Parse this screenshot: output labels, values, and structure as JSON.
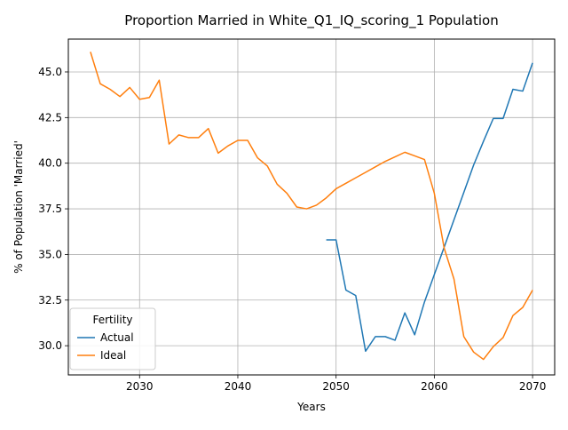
{
  "chart_data": {
    "type": "line",
    "title": "Proportion Married in White_Q1_IQ_scoring_1 Population",
    "xlabel": "Years",
    "ylabel": "% of Population 'Married'",
    "xlim": [
      2022.75,
      2072.25
    ],
    "ylim": [
      28.4,
      46.8
    ],
    "xticks": [
      2030,
      2040,
      2050,
      2060,
      2070
    ],
    "yticks": [
      30.0,
      32.5,
      35.0,
      37.5,
      40.0,
      42.5,
      45.0
    ],
    "grid": true,
    "legend": {
      "title": "Fertility",
      "position": "lower left"
    },
    "series": [
      {
        "name": "Actual",
        "color": "#1f77b4",
        "x": [
          2049,
          2050,
          2051,
          2052,
          2053,
          2054,
          2055,
          2056,
          2057,
          2058,
          2059,
          2060,
          2061,
          2062,
          2063,
          2064,
          2065,
          2066,
          2067,
          2068,
          2069,
          2070
        ],
        "y": [
          35.8,
          35.8,
          33.05,
          32.75,
          29.7,
          30.5,
          30.5,
          30.3,
          31.8,
          30.6,
          32.4,
          33.9,
          35.4,
          36.9,
          38.4,
          39.9,
          41.2,
          42.45,
          42.45,
          44.05,
          43.95,
          45.5
        ]
      },
      {
        "name": "Ideal",
        "color": "#ff7f0e",
        "x": [
          2025,
          2026,
          2027,
          2028,
          2029,
          2030,
          2031,
          2032,
          2033,
          2034,
          2035,
          2036,
          2037,
          2038,
          2039,
          2040,
          2041,
          2042,
          2043,
          2044,
          2045,
          2046,
          2047,
          2048,
          2049,
          2050,
          2051,
          2052,
          2053,
          2054,
          2055,
          2056,
          2057,
          2058,
          2059,
          2060,
          2061,
          2062,
          2063,
          2064,
          2065,
          2066,
          2067,
          2068,
          2069,
          2070
        ],
        "y": [
          46.1,
          44.35,
          44.05,
          43.65,
          44.15,
          43.5,
          43.6,
          44.55,
          41.05,
          41.55,
          41.4,
          41.4,
          41.9,
          40.55,
          40.95,
          41.25,
          41.25,
          40.3,
          39.85,
          38.85,
          38.35,
          37.6,
          37.5,
          37.7,
          38.1,
          38.6,
          38.9,
          39.2,
          39.5,
          39.8,
          40.1,
          40.35,
          40.6,
          40.4,
          40.2,
          38.35,
          35.35,
          33.65,
          30.5,
          29.65,
          29.25,
          29.95,
          30.45,
          31.65,
          32.1,
          33.05
        ]
      }
    ]
  }
}
